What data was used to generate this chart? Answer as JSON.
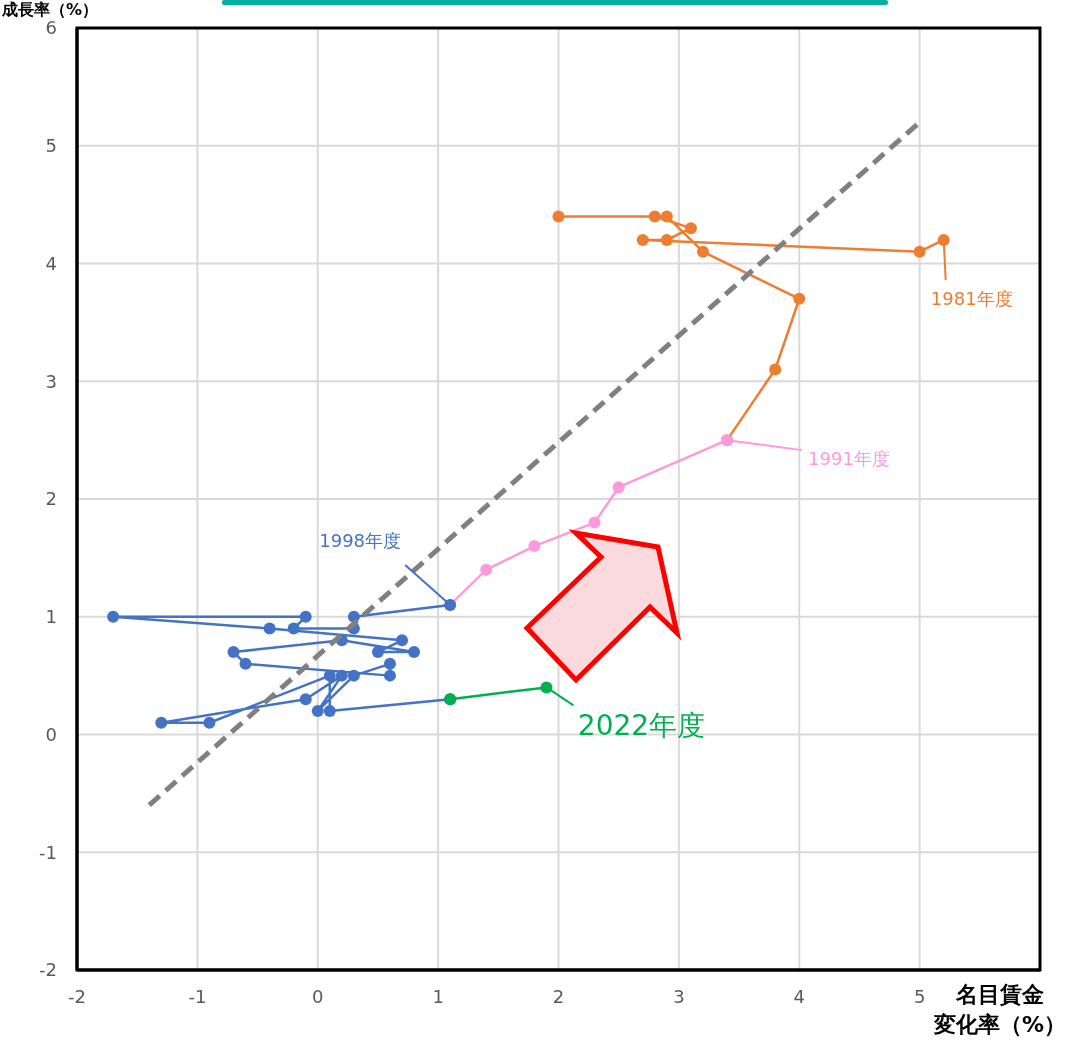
{
  "chart_data": {
    "type": "line",
    "xlabel": "名目賃金変化率（%）",
    "ylabel": "成長率（%）",
    "xlim": [
      -2,
      6
    ],
    "xticks": [
      -2,
      -1,
      0,
      1,
      2,
      3,
      4,
      5,
      {
        "value": 6,
        "label": null
      }
    ],
    "ylim": [
      -2,
      6
    ],
    "yticks": [
      -2,
      -1,
      0,
      1,
      2,
      3,
      4,
      5,
      6
    ],
    "grid": true,
    "legend": false,
    "marker": "circle",
    "line_style": "solid",
    "series": [
      {
        "color": "#ed7d31",
        "x": [
          5.2,
          5.0,
          2.7,
          2.9,
          3.1,
          2.8,
          2.0,
          2.9,
          3.2,
          4.0,
          3.8,
          3.4
        ],
        "values": [
          4.2,
          4.1,
          4.2,
          4.2,
          4.3,
          4.4,
          4.4,
          4.4,
          4.1,
          3.7,
          3.1,
          2.5
        ]
      },
      {
        "color": "#ff99dd",
        "x": [
          3.4,
          2.5,
          2.3,
          1.8,
          1.4,
          1.1
        ],
        "values": [
          2.5,
          2.1,
          1.8,
          1.6,
          1.4,
          1.1
        ]
      },
      {
        "color": "#4472c4",
        "x": [
          1.1,
          0.3,
          0.3,
          -0.2,
          -0.1,
          -1.7,
          -0.4,
          0.7,
          0.5,
          0.8,
          0.2,
          -0.7,
          -0.6,
          0.6,
          0.6,
          0.3,
          0.0,
          0.2,
          -0.1,
          -1.3,
          -0.9,
          0.1,
          0.1,
          1.1
        ],
        "values": [
          1.1,
          1.0,
          0.9,
          0.9,
          1.0,
          1.0,
          0.9,
          0.8,
          0.7,
          0.7,
          0.8,
          0.7,
          0.6,
          0.5,
          0.6,
          0.5,
          0.2,
          0.5,
          0.3,
          0.1,
          0.1,
          0.5,
          0.2,
          0.3
        ]
      },
      {
        "color": "#00b050",
        "x": [
          1.1,
          1.9
        ],
        "values": [
          0.3,
          0.4
        ]
      },
      {
        "color": "#808080",
        "x": [
          -1.4,
          5.0
        ],
        "values": [
          -0.6,
          5.2
        ],
        "marker": "none",
        "line_style": "dashed"
      }
    ],
    "annotations": [
      {
        "text": "1981年度",
        "x": 5.2,
        "y": 4.2
      },
      {
        "text": "1991年度",
        "x": 3.4,
        "y": 2.5
      },
      {
        "text": "1998年度",
        "x": 1.1,
        "y": 1.1
      },
      {
        "text": "2022年度",
        "x": 1.9,
        "y": 0.4
      }
    ]
  }
}
